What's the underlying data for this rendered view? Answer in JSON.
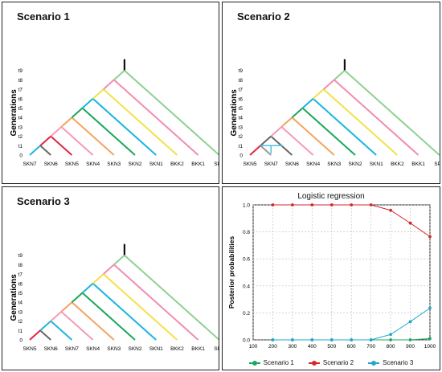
{
  "scenarios": [
    {
      "title": "Scenario 1",
      "y_label": "Generations",
      "gen_ticks": [
        "0",
        "t1",
        "t2",
        "t3",
        "t4",
        "t5",
        "t6",
        "t7",
        "t8",
        "t9"
      ],
      "leaves": [
        "SKN7",
        "SKN6",
        "SKN5",
        "SKN4",
        "SKN3",
        "SKN2",
        "SKN1",
        "BKK2",
        "BKK1",
        "SPK"
      ],
      "colors": [
        "#1fb6d9",
        "#666666",
        "#e0263f",
        "#f59ab6",
        "#f4a261",
        "#1ba85a",
        "#19b5e0",
        "#f2e14a",
        "#f28cb2",
        "#8fd18f"
      ]
    },
    {
      "title": "Scenario 2",
      "y_label": "Generations",
      "gen_ticks": [
        "0",
        "t1",
        "t2",
        "t3",
        "t4",
        "t5",
        "t6",
        "t7",
        "t8",
        "t9"
      ],
      "leaves": [
        "SKN5",
        "SKN7",
        "SKN6",
        "SKN4",
        "SKN3",
        "SKN2",
        "SKN1",
        "BKK2",
        "BKK1",
        "SPK"
      ],
      "colors": [
        "#e0263f",
        "#999999",
        "#666666",
        "#f59ab6",
        "#f4a261",
        "#1ba85a",
        "#19b5e0",
        "#f2e14a",
        "#f28cb2",
        "#8fd18f"
      ],
      "admixture_color": "#48c4e0"
    },
    {
      "title": "Scenario 3",
      "y_label": "Generations",
      "gen_ticks": [
        "0",
        "t1",
        "t2",
        "t3",
        "t4",
        "t5",
        "t6",
        "t7",
        "t8",
        "t9"
      ],
      "leaves": [
        "SKN5",
        "SKN6",
        "SKN7",
        "SKN4",
        "SKN3",
        "SKN2",
        "SKN1",
        "BKK2",
        "BKK1",
        "SPK"
      ],
      "colors": [
        "#e0263f",
        "#666666",
        "#1fb6d9",
        "#f59ab6",
        "#f4a261",
        "#1ba85a",
        "#19b5e0",
        "#f2e14a",
        "#f28cb2",
        "#8fd18f"
      ]
    }
  ],
  "logistic": {
    "title": "Logistic regression",
    "ylabel": "Posterior probabilities",
    "legend": [
      "Scenario 1",
      "Scenario 2",
      "Scenario 3"
    ]
  },
  "chart_data": {
    "type": "line",
    "title": "Logistic regression",
    "xlabel": "",
    "ylabel": "Posterior probabilities",
    "x": [
      200,
      300,
      400,
      500,
      600,
      700,
      800,
      900,
      1000
    ],
    "xticks": [
      100,
      200,
      300,
      400,
      500,
      600,
      700,
      800,
      900,
      1000
    ],
    "xlim": [
      100,
      1000
    ],
    "yticks": [
      0.0,
      0.2,
      0.4,
      0.6,
      0.8,
      1.0
    ],
    "ylim": [
      0,
      1
    ],
    "grid": true,
    "legend_position": "bottom",
    "series": [
      {
        "name": "Scenario 1",
        "color": "#1ba85a",
        "values": [
          0,
          0,
          0,
          0,
          0,
          0,
          0,
          0,
          0.01
        ]
      },
      {
        "name": "Scenario 2",
        "color": "#d62728",
        "values": [
          1,
          1,
          1,
          1,
          1,
          1,
          0.96,
          0.865,
          0.765
        ]
      },
      {
        "name": "Scenario 3",
        "color": "#1fa8c9",
        "values": [
          0,
          0,
          0,
          0,
          0,
          0,
          0.04,
          0.135,
          0.235
        ]
      }
    ]
  }
}
